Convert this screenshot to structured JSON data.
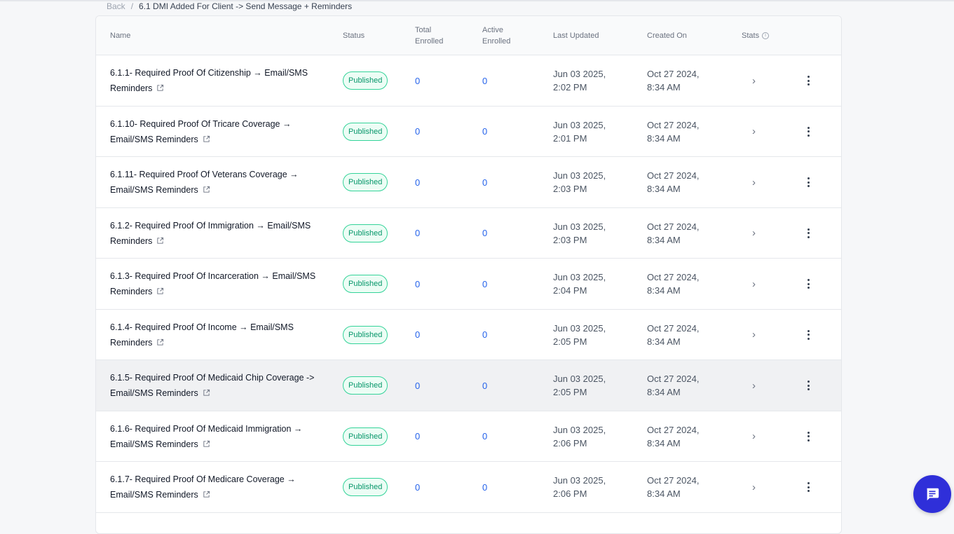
{
  "breadcrumb": {
    "back": "Back",
    "separator": "/",
    "current": "6.1 DMI Added For Client -> Send Message + Reminders"
  },
  "table": {
    "headers": {
      "name": "Name",
      "status": "Status",
      "total_enrolled": "Total Enrolled",
      "active_enrolled": "Active Enrolled",
      "last_updated": "Last Updated",
      "created_on": "Created On",
      "stats": "Stats"
    },
    "rows": [
      {
        "name": "6.1.1- Required Proof Of Citizenship → Email/SMS Reminders",
        "status": "Published",
        "total": "0",
        "active": "0",
        "updated": "Jun 03 2025, 2:02 PM",
        "created": "Oct 27 2024, 8:34 AM"
      },
      {
        "name": "6.1.10- Required Proof Of Tricare Coverage → Email/SMS Reminders",
        "status": "Published",
        "total": "0",
        "active": "0",
        "updated": "Jun 03 2025, 2:01 PM",
        "created": "Oct 27 2024, 8:34 AM"
      },
      {
        "name": "6.1.11- Required Proof Of Veterans Coverage → Email/SMS Reminders",
        "status": "Published",
        "total": "0",
        "active": "0",
        "updated": "Jun 03 2025, 2:03 PM",
        "created": "Oct 27 2024, 8:34 AM"
      },
      {
        "name": "6.1.2- Required Proof Of Immigration → Email/SMS Reminders",
        "status": "Published",
        "total": "0",
        "active": "0",
        "updated": "Jun 03 2025, 2:03 PM",
        "created": "Oct 27 2024, 8:34 AM"
      },
      {
        "name": "6.1.3- Required Proof Of Incarceration → Email/SMS  Reminders",
        "status": "Published",
        "total": "0",
        "active": "0",
        "updated": "Jun 03 2025, 2:04 PM",
        "created": "Oct 27 2024, 8:34 AM"
      },
      {
        "name": "6.1.4- Required Proof Of Income → Email/SMS Reminders",
        "status": "Published",
        "total": "0",
        "active": "0",
        "updated": "Jun 03 2025, 2:05 PM",
        "created": "Oct 27 2024, 8:34 AM"
      },
      {
        "name": "6.1.5- Required Proof Of Medicaid Chip Coverage -> Email/SMS Reminders",
        "status": "Published",
        "total": "0",
        "active": "0",
        "updated": "Jun 03 2025, 2:05 PM",
        "created": "Oct 27 2024, 8:34 AM"
      },
      {
        "name": "6.1.6- Required Proof Of Medicaid Immigration → Email/SMS Reminders",
        "status": "Published",
        "total": "0",
        "active": "0",
        "updated": "Jun 03 2025, 2:06 PM",
        "created": "Oct 27 2024, 8:34 AM"
      },
      {
        "name": "6.1.7- Required Proof Of Medicare Coverage → Email/SMS Reminders",
        "status": "Published",
        "total": "0",
        "active": "0",
        "updated": "Jun 03 2025, 2:06 PM",
        "created": "Oct 27 2024, 8:34 AM"
      }
    ]
  },
  "icons": {
    "external_link": "external-link-icon",
    "stats_arrow": "chevron-right-icon",
    "row_menu": "kebab-menu-icon",
    "info": "info-icon",
    "chat": "chat-icon"
  },
  "colors": {
    "link_blue": "#2563eb",
    "badge_green": "#059669",
    "fab_blue": "#2f2fd9"
  }
}
